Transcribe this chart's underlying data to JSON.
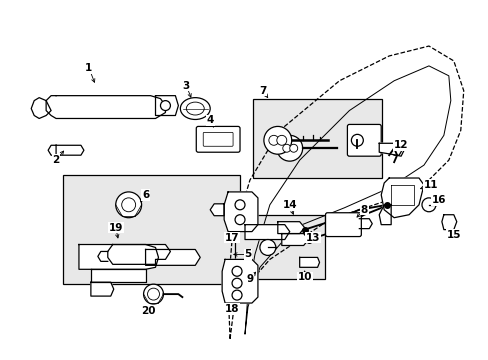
{
  "bg_color": "#ffffff",
  "fig_width": 4.89,
  "fig_height": 3.6,
  "dpi": 100,
  "line_color": "#000000",
  "fill_light": "#e8e8e8",
  "fill_white": "#ffffff"
}
